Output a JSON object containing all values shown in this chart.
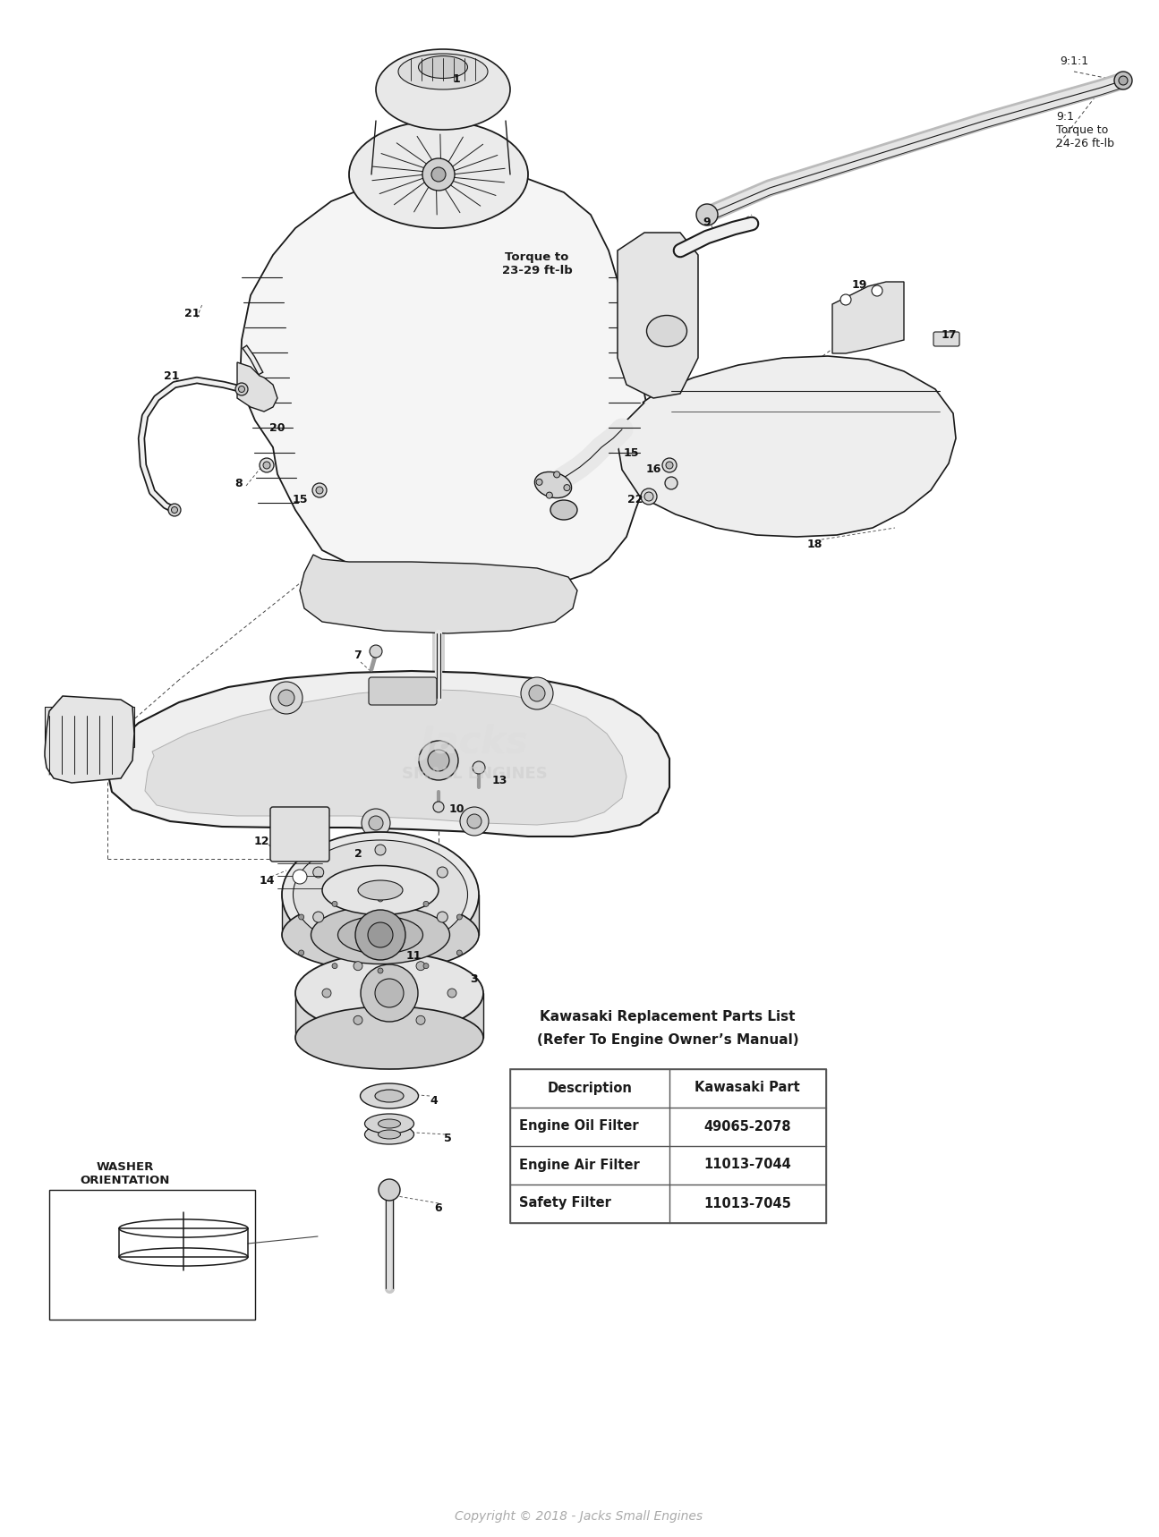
{
  "bg_color": "#ffffff",
  "copyright": "Copyright © 2018 - Jacks Small Engines",
  "table_title_line1": "Kawasaki Replacement Parts List",
  "table_title_line2": "(Refer To Engine Owner’s Manual)",
  "table_headers": [
    "Description",
    "Kawasaki Part"
  ],
  "table_rows": [
    [
      "Engine Oil Filter",
      "49065-2078"
    ],
    [
      "Engine Air Filter",
      "11013-7044"
    ],
    [
      "Safety Filter",
      "11013-7045"
    ]
  ],
  "torque1": "Torque to\n23-29 ft-lb",
  "torque2": "9:1\nTorque to\n24-26 ft-lb",
  "ratio1": "9:1:1",
  "washer_label": "WASHER\nORIENTATION",
  "lc": "#1a1a1a",
  "tc": "#1a1a1a",
  "tbc": "#555555",
  "gray_fill": "#e8e8e8",
  "light_fill": "#f2f2f2",
  "mid_fill": "#d0d0d0",
  "dark_fill": "#b0b0b0"
}
